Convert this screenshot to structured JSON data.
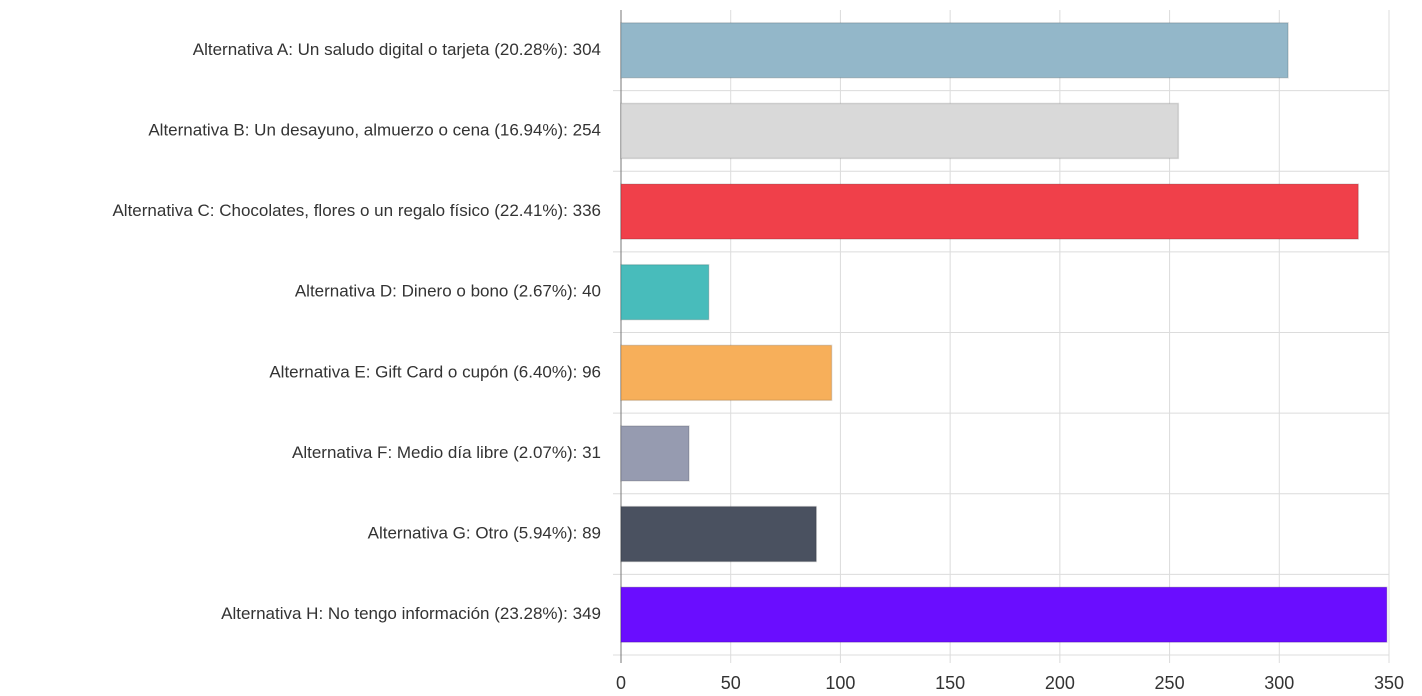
{
  "chart_data": {
    "type": "hbar",
    "categories": [
      "Alternativa A: Un saludo digital o tarjeta (20.28%): 304",
      "Alternativa B: Un desayuno, almuerzo o cena (16.94%): 254",
      "Alternativa C: Chocolates, flores o un regalo físico (22.41%): 336",
      "Alternativa D: Dinero o bono (2.67%): 40",
      "Alternativa E: Gift Card o cupón (6.40%): 96",
      "Alternativa F: Medio día libre (2.07%): 31",
      "Alternativa G: Otro (5.94%): 89",
      "Alternativa H: No tengo información (23.28%): 349"
    ],
    "values": [
      304,
      254,
      336,
      40,
      96,
      31,
      89,
      349
    ],
    "colors": [
      "#93b7c9",
      "#d9d9d9",
      "#f0404a",
      "#48bcbb",
      "#f7af5a",
      "#969bb0",
      "#4a5160",
      "#6a0dff"
    ],
    "xlim": [
      0,
      350
    ],
    "xticks": [
      0,
      50,
      100,
      150,
      200,
      250,
      300,
      350
    ],
    "grid": true
  }
}
